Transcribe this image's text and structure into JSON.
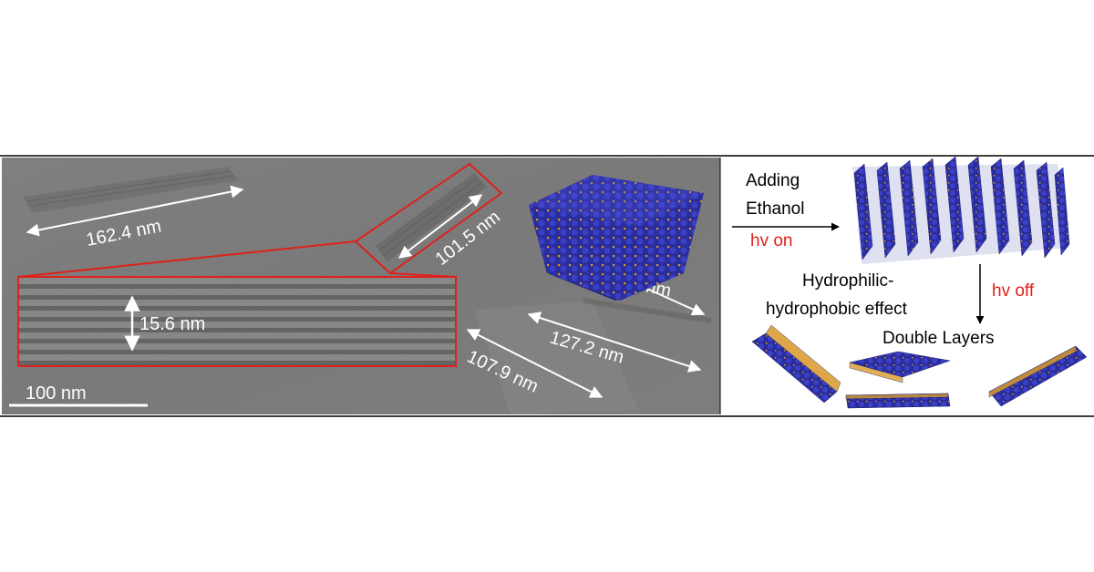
{
  "tem": {
    "measurements": {
      "m1": "162.4 nm",
      "m2": "101.5 nm",
      "m3": "78.6 nm",
      "m4": "127.2 nm",
      "m5": "107.9 nm"
    },
    "inset_measurement": "15.6 nm",
    "scale_bar": "100 nm"
  },
  "scheme": {
    "step1_line1": "Adding",
    "step1_line2": "Ethanol",
    "hv_on": "hv on",
    "effect_line1": "Hydrophilic-",
    "effect_line2": "hydrophobic effect",
    "hv_off": "hv off",
    "result": "Double Layers"
  },
  "colors": {
    "tem_background": "#7d7d7d",
    "highlight_red": "#e0201b",
    "label_white": "#ffffff",
    "text_black": "#000000",
    "molecule_blue": "#2a2d9c",
    "molecule_gold": "#d99a2b"
  }
}
